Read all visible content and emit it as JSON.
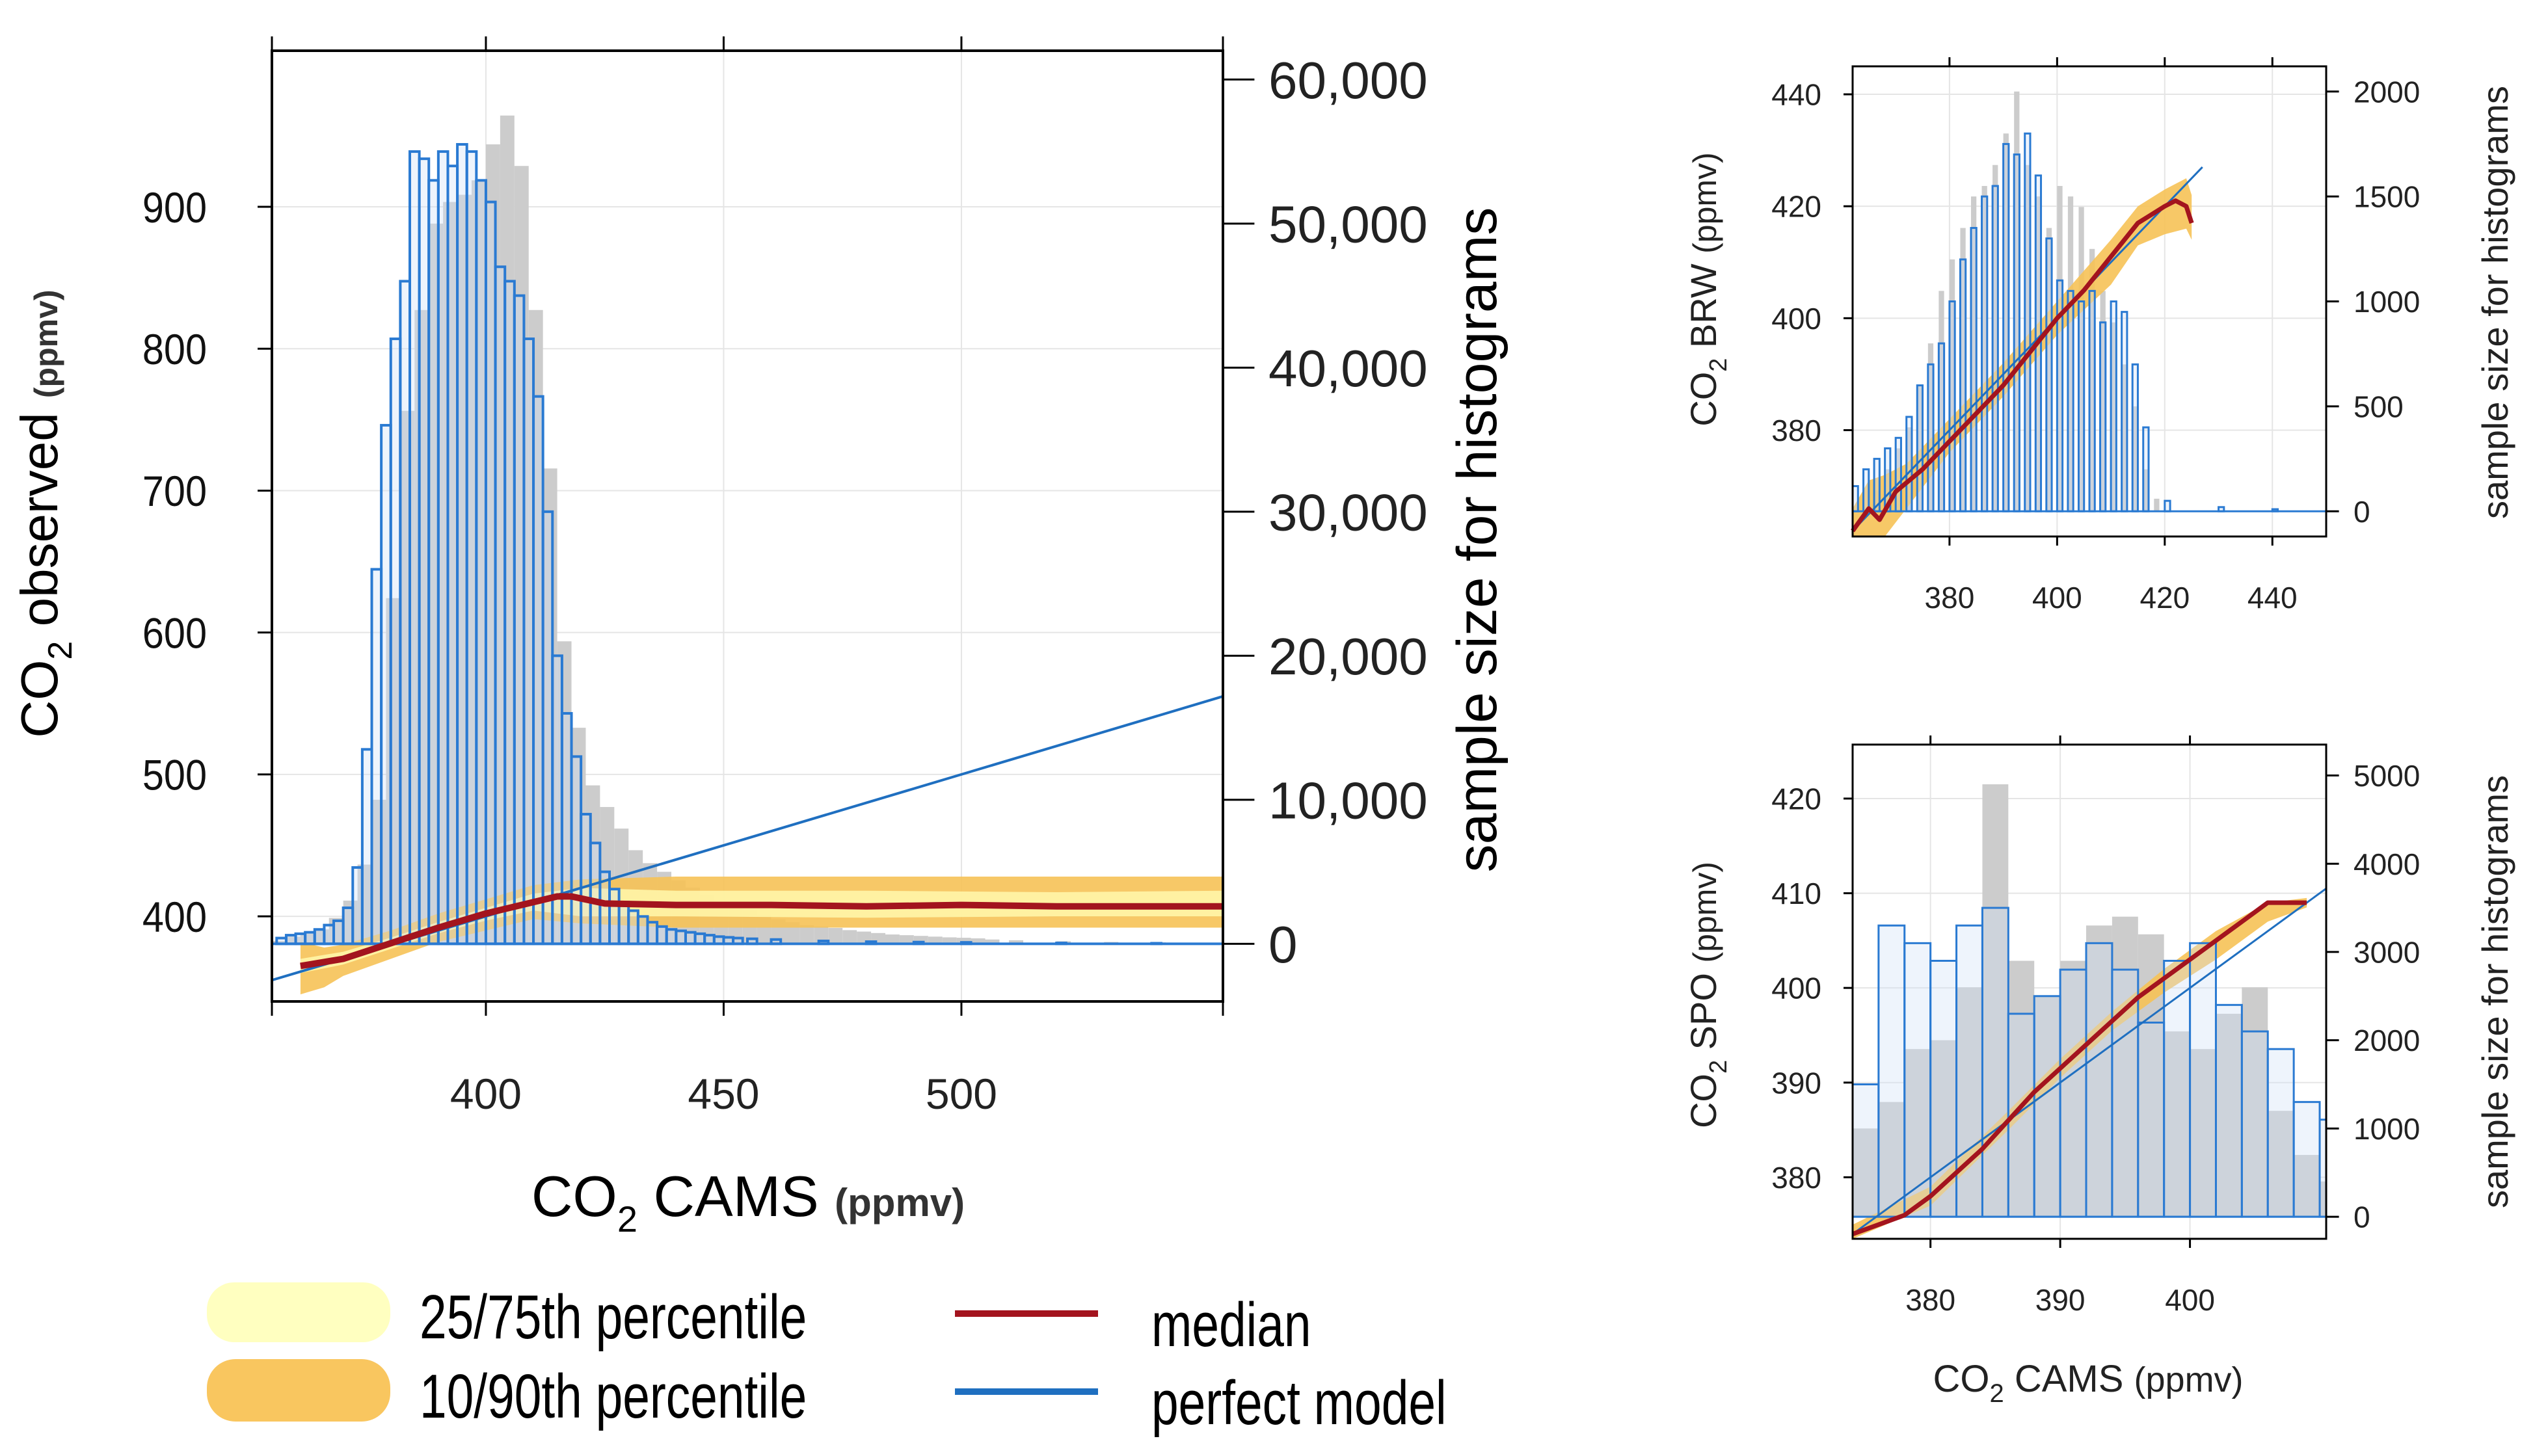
{
  "colors": {
    "observed_hist": "#cccccc",
    "model_hist": "#2a7ad2",
    "model_hist_fill": "#cfe0f5",
    "median": "#a3141e",
    "perfect_model": "#1f6fc0",
    "band_25_75": "#fff5a8",
    "band_10_90": "#f6c257",
    "axis": "#000000",
    "grid": "#e5e5e5",
    "legend_band_25_75": "#ffffc0",
    "legend_band_10_90": "#f9c65f"
  },
  "legend": {
    "p25_75": "25/75th percentile",
    "p10_90": "10/90th percentile",
    "median": "median",
    "perfect_model": "perfect model"
  },
  "chart_data": [
    {
      "id": "main",
      "type": "scatter",
      "xlabel_base": "CO",
      "xlabel_sub": "2",
      "xlabel_rest": " CAMS ",
      "xlabel_unit": "(ppmv)",
      "ylabel_base": "CO",
      "ylabel_sub": "2",
      "ylabel_rest": " observed ",
      "ylabel_unit": "(ppmv)",
      "y2label": "sample size for histograms",
      "xlim": [
        355,
        555
      ],
      "ylim": [
        340,
        1010
      ],
      "y2lim": [
        -4000,
        62000
      ],
      "xticks": [
        400,
        450,
        500
      ],
      "xtick_labels": [
        "400",
        "450",
        "500"
      ],
      "yticks": [
        400,
        500,
        600,
        700,
        800,
        900
      ],
      "ytick_labels": [
        "400",
        "500",
        "600",
        "700",
        "800",
        "900"
      ],
      "y2ticks": [
        0,
        10000,
        20000,
        30000,
        40000,
        50000,
        60000
      ],
      "y2tick_labels": [
        "0",
        "10,000",
        "20,000",
        "30,000",
        "40,000",
        "50,000",
        "60,000"
      ],
      "perfect_model": [
        [
          355,
          355
        ],
        [
          555,
          555
        ]
      ],
      "median": {
        "x": [
          361,
          370,
          380,
          390,
          400,
          410,
          415,
          418,
          425,
          440,
          460,
          480,
          500,
          520,
          555
        ],
        "y": [
          365,
          370,
          381,
          392,
          402,
          410,
          414,
          414,
          409,
          408,
          408,
          407,
          408,
          407,
          407
        ]
      },
      "band_25_75": {
        "x": [
          361,
          370,
          380,
          390,
          400,
          410,
          420,
          440,
          480,
          520,
          555
        ],
        "lo": [
          360,
          366,
          377,
          388,
          397,
          404,
          400,
          400,
          399,
          400,
          400
        ],
        "hi": [
          370,
          375,
          385,
          396,
          406,
          416,
          420,
          418,
          418,
          417,
          418
        ]
      },
      "band_10_90": {
        "x": [
          361,
          366,
          370,
          380,
          390,
          400,
          410,
          420,
          440,
          480,
          520,
          555
        ],
        "lo": [
          345,
          350,
          358,
          370,
          382,
          390,
          398,
          395,
          392,
          392,
          392,
          392
        ],
        "hi": [
          382,
          378,
          380,
          390,
          402,
          412,
          422,
          426,
          428,
          428,
          428,
          428
        ]
      },
      "hist_observed": {
        "bin_width": 3,
        "x": [
          355,
          358,
          361,
          364,
          367,
          370,
          373,
          376,
          379,
          382,
          385,
          388,
          391,
          394,
          397,
          400,
          403,
          406,
          409,
          412,
          415,
          418,
          421,
          424,
          427,
          430,
          433,
          436,
          439,
          442,
          445,
          448,
          451,
          454,
          457,
          460,
          463,
          466,
          469,
          472,
          475,
          478,
          481,
          484,
          487,
          490,
          493,
          496,
          499,
          502,
          505,
          510,
          520,
          530,
          540,
          550
        ],
        "n": [
          200,
          500,
          700,
          1000,
          1800,
          3000,
          5500,
          10000,
          24000,
          37000,
          44000,
          50000,
          51500,
          52000,
          53000,
          55500,
          57500,
          54000,
          44000,
          33000,
          21000,
          15000,
          11000,
          9500,
          8000,
          6500,
          5600,
          5000,
          4400,
          3900,
          3400,
          2900,
          2600,
          2300,
          2000,
          1700,
          1500,
          1300,
          1200,
          1100,
          950,
          850,
          750,
          650,
          600,
          550,
          500,
          450,
          420,
          380,
          300,
          250,
          180,
          130,
          100,
          80
        ]
      },
      "hist_model": {
        "bin_width": 2,
        "x": [
          356,
          358,
          360,
          362,
          364,
          366,
          368,
          370,
          372,
          374,
          376,
          378,
          380,
          382,
          384,
          386,
          388,
          390,
          392,
          394,
          396,
          398,
          400,
          402,
          404,
          406,
          408,
          410,
          412,
          414,
          416,
          418,
          420,
          422,
          424,
          426,
          428,
          430,
          432,
          434,
          436,
          438,
          440,
          442,
          444,
          446,
          448,
          450,
          452,
          455,
          460,
          470,
          480,
          490,
          500,
          520,
          540
        ],
        "n": [
          400,
          600,
          700,
          800,
          1000,
          1300,
          1600,
          2500,
          5300,
          13500,
          26000,
          36000,
          42000,
          46000,
          55000,
          54500,
          53000,
          55000,
          54000,
          55500,
          55000,
          53000,
          51500,
          47000,
          46000,
          45000,
          42000,
          38000,
          30000,
          20000,
          16000,
          13000,
          9000,
          7000,
          5000,
          3800,
          2900,
          2300,
          1900,
          1500,
          1200,
          1000,
          900,
          800,
          700,
          600,
          500,
          450,
          400,
          350,
          300,
          200,
          150,
          120,
          100,
          60,
          40
        ]
      }
    },
    {
      "id": "brw",
      "type": "scatter",
      "ylabel_base": "CO",
      "ylabel_sub": "2",
      "ylabel_rest": " BRW ",
      "ylabel_unit": "(ppmv)",
      "y2label": "sample size for histograms",
      "xlim": [
        362,
        450
      ],
      "ylim": [
        361,
        445
      ],
      "y2lim": [
        -120,
        2120
      ],
      "xticks": [
        380,
        400,
        420,
        440
      ],
      "xtick_labels": [
        "380",
        "400",
        "420",
        "440"
      ],
      "yticks": [
        380,
        400,
        420,
        440
      ],
      "ytick_labels": [
        "380",
        "400",
        "420",
        "440"
      ],
      "y2ticks": [
        0,
        500,
        1000,
        1500,
        2000
      ],
      "y2tick_labels": [
        "0",
        "500",
        "1000",
        "1500",
        "2000"
      ],
      "perfect_model": [
        [
          362,
          362
        ],
        [
          427,
          427
        ]
      ],
      "median": {
        "x": [
          362,
          365,
          367,
          370,
          375,
          380,
          385,
          390,
          395,
          400,
          405,
          410,
          415,
          420,
          422,
          424,
          425
        ],
        "y": [
          362,
          366,
          364,
          369,
          373,
          378,
          383,
          388,
          394,
          400,
          405,
          411,
          417,
          420,
          421,
          420,
          417
        ]
      },
      "band_10_90": {
        "x": [
          362,
          365,
          368,
          372,
          380,
          390,
          400,
          410,
          415,
          420,
          424,
          425
        ],
        "lo": [
          359,
          360,
          361,
          366,
          376,
          386,
          397,
          406,
          413,
          415,
          416,
          414
        ],
        "hi": [
          366,
          371,
          372,
          374,
          382,
          392,
          403,
          414,
          420,
          423,
          425,
          422
        ]
      },
      "hist_observed": {
        "bin_width": 1,
        "x": [
          366,
          368,
          370,
          372,
          374,
          376,
          378,
          380,
          382,
          384,
          386,
          388,
          390,
          392,
          394,
          396,
          398,
          400,
          402,
          404,
          406,
          408,
          410,
          412,
          414,
          416,
          418
        ],
        "n": [
          100,
          200,
          300,
          400,
          600,
          800,
          1050,
          1200,
          1350,
          1500,
          1550,
          1650,
          1800,
          2000,
          1650,
          1500,
          1350,
          1550,
          1500,
          1450,
          1250,
          1050,
          900,
          700,
          500,
          200,
          60
        ]
      },
      "hist_model": {
        "bin_width": 1,
        "x": [
          362,
          364,
          366,
          368,
          370,
          372,
          374,
          376,
          378,
          380,
          382,
          384,
          386,
          388,
          390,
          392,
          394,
          396,
          398,
          400,
          402,
          404,
          406,
          408,
          410,
          412,
          414,
          416,
          420,
          430,
          440
        ],
        "n": [
          120,
          200,
          250,
          300,
          350,
          450,
          600,
          700,
          800,
          1000,
          1200,
          1350,
          1500,
          1550,
          1750,
          1700,
          1800,
          1600,
          1300,
          1100,
          1050,
          1000,
          1050,
          900,
          1000,
          950,
          700,
          400,
          50,
          20,
          10
        ]
      }
    },
    {
      "id": "spo",
      "type": "scatter",
      "xlabel_base": "CO",
      "xlabel_sub": "2",
      "xlabel_rest": " CAMS ",
      "xlabel_unit": "(ppmv)",
      "ylabel_base": "CO",
      "ylabel_sub": "2",
      "ylabel_rest": " SPO ",
      "ylabel_unit": "(ppmv)",
      "y2label": "sample size for histograms",
      "xlim": [
        374,
        410.5
      ],
      "ylim": [
        373.5,
        425.7
      ],
      "y2lim": [
        -250,
        5350
      ],
      "xticks": [
        380,
        390,
        400
      ],
      "xtick_labels": [
        "380",
        "390",
        "400"
      ],
      "yticks": [
        380,
        390,
        400,
        410,
        420
      ],
      "ytick_labels": [
        "380",
        "390",
        "400",
        "410",
        "420"
      ],
      "y2ticks": [
        0,
        1000,
        2000,
        3000,
        4000,
        5000
      ],
      "y2tick_labels": [
        "0",
        "1000",
        "2000",
        "3000",
        "4000",
        "5000"
      ],
      "perfect_model": [
        [
          374,
          374
        ],
        [
          410.5,
          410.5
        ]
      ],
      "median": {
        "x": [
          374,
          376,
          378,
          380,
          382,
          384,
          386,
          388,
          390,
          392,
          394,
          396,
          398,
          400,
          402,
          404,
          406,
          408,
          409
        ],
        "y": [
          374,
          375,
          376,
          378,
          380.5,
          383,
          386,
          389,
          391.5,
          394,
          396.5,
          399,
          401,
          403,
          405,
          407,
          409,
          409,
          409
        ]
      },
      "band_10_90": {
        "x": [
          374,
          380,
          386,
          390,
          394,
          398,
          402,
          406,
          409
        ],
        "lo": [
          373.5,
          377,
          385,
          390.5,
          395.5,
          399.5,
          403,
          407,
          408.5
        ],
        "hi": [
          375,
          379,
          387,
          392.5,
          397.5,
          402,
          406,
          409,
          409.5
        ]
      },
      "hist_observed": {
        "bin_width": 2,
        "x": [
          374,
          376,
          378,
          380,
          382,
          384,
          386,
          388,
          390,
          392,
          394,
          396,
          398,
          400,
          402,
          404,
          406,
          408,
          410
        ],
        "n": [
          1000,
          1300,
          1900,
          2000,
          2600,
          4900,
          2900,
          2500,
          2900,
          3300,
          3400,
          3200,
          2100,
          1900,
          2300,
          2600,
          1200,
          700,
          400
        ]
      },
      "hist_model": {
        "bin_width": 2,
        "x": [
          374,
          376,
          378,
          380,
          382,
          384,
          386,
          388,
          390,
          392,
          394,
          396,
          398,
          400,
          402,
          404,
          406,
          408,
          410
        ],
        "n": [
          1500,
          3300,
          3100,
          2900,
          3300,
          3500,
          2300,
          2500,
          2800,
          3100,
          2800,
          2200,
          2900,
          3100,
          2400,
          2100,
          1900,
          1300,
          1100
        ]
      }
    }
  ]
}
